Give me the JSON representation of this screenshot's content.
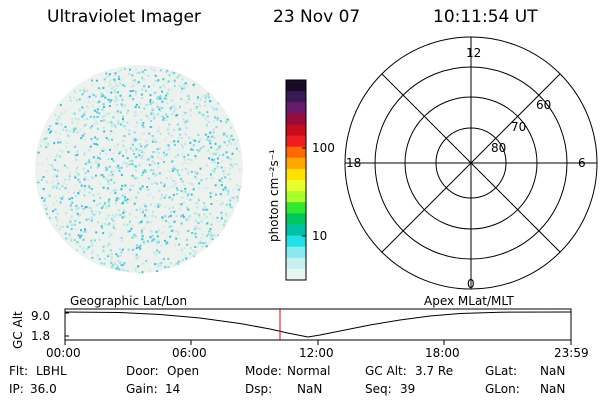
{
  "header": {
    "title": "Ultraviolet Imager",
    "date": "23 Nov 07",
    "time": "10:11:54 UT"
  },
  "colorbar": {
    "unit_label": "photon cm⁻²s⁻¹",
    "ticks": [
      "100",
      "10"
    ],
    "colors": [
      "#1a0a2a",
      "#3a1a55",
      "#6a1a6a",
      "#9a0a3a",
      "#c80a1e",
      "#ee1e1e",
      "#ff6a00",
      "#ffa800",
      "#ffe200",
      "#e8ff30",
      "#a8ff30",
      "#30e830",
      "#00c860",
      "#00c0a8",
      "#20e0e8",
      "#8ae8f0",
      "#c8f0f0",
      "#e8f4f0"
    ]
  },
  "polar": {
    "mlt_labels": [
      "12",
      "18",
      "6",
      "0"
    ],
    "lat_labels": [
      "60",
      "70",
      "80"
    ]
  },
  "timeline": {
    "left_label": "Geographic Lat/Lon",
    "right_label": "Apex MLat/MLT",
    "axis_title": "GC Alt",
    "y_ticks": [
      "9.0",
      "1.8"
    ],
    "x_ticks": [
      "00:00",
      "06:00",
      "12:00",
      "18:00",
      "23:59"
    ],
    "marker_time": "10:11:54",
    "marker_color": "#e00000"
  },
  "footer": {
    "flt_label": "Flt:",
    "flt_value": "LBHL",
    "ip_label": "IP:",
    "ip_value": "36.0",
    "door_label": "Door:",
    "door_value": "Open",
    "gain_label": "Gain:",
    "gain_value": "14",
    "mode_label": "Mode:",
    "mode_value": "Normal",
    "dsp_label": "Dsp:",
    "dsp_value": "NaN",
    "gcalt_label": "GC Alt:",
    "gcalt_value": "3.7 Re",
    "seq_label": "Seq:",
    "seq_value": "39",
    "glat_label": "GLat:",
    "glat_value": "NaN",
    "glon_label": "GLon:",
    "glon_value": "NaN"
  }
}
